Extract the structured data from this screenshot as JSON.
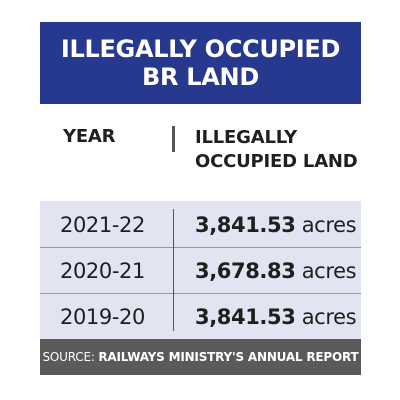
{
  "title": {
    "line1": "ILLEGALLY OCCUPIED",
    "line2": "BR LAND"
  },
  "table": {
    "headers": {
      "year": "YEAR",
      "land_line1": "ILLEGALLY",
      "land_line2": "OCCUPIED LAND"
    },
    "unit": "acres",
    "rows": [
      {
        "year": "2021-22",
        "value": "3,841.53"
      },
      {
        "year": "2020-21",
        "value": "3,678.83"
      },
      {
        "year": "2019-20",
        "value": "3,841.53"
      }
    ]
  },
  "source": {
    "label": "SOURCE:",
    "text": "RAILWAYS MINISTRY'S ANNUAL REPORT"
  },
  "colors": {
    "title_background": "#27388f",
    "rows_background": "#e2e4f1",
    "source_background": "#5a5a5a"
  }
}
